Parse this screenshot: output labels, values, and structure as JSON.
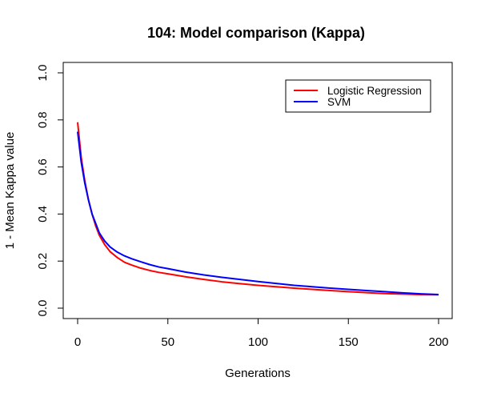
{
  "chart_data": {
    "type": "line",
    "title": "104: Model comparison (Kappa)",
    "xlabel": "Generations",
    "ylabel": "1 - Mean Kappa value",
    "xlim": [
      0,
      200
    ],
    "ylim": [
      0.0,
      1.0
    ],
    "xticks": [
      0,
      50,
      100,
      150,
      200
    ],
    "yticks": [
      0.0,
      0.2,
      0.4,
      0.6,
      0.8,
      1.0
    ],
    "xtick_labels": [
      "0",
      "50",
      "100",
      "150",
      "200"
    ],
    "ytick_labels": [
      "0.0",
      "0.2",
      "0.4",
      "0.6",
      "0.8",
      "1.0"
    ],
    "legend_position": "top-right",
    "grid": false,
    "series": [
      {
        "name": "Logistic Regression",
        "color": "#ff0000",
        "x": [
          0,
          2,
          4,
          6,
          8,
          10,
          12,
          15,
          18,
          22,
          26,
          30,
          35,
          40,
          45,
          50,
          60,
          70,
          80,
          90,
          100,
          110,
          120,
          130,
          140,
          150,
          160,
          170,
          180,
          190,
          200
        ],
        "y": [
          0.79,
          0.64,
          0.54,
          0.46,
          0.4,
          0.35,
          0.31,
          0.27,
          0.24,
          0.215,
          0.195,
          0.183,
          0.17,
          0.16,
          0.152,
          0.146,
          0.133,
          0.122,
          0.112,
          0.104,
          0.097,
          0.091,
          0.085,
          0.08,
          0.075,
          0.07,
          0.066,
          0.062,
          0.06,
          0.058,
          0.057
        ]
      },
      {
        "name": "SVM",
        "color": "#0000ff",
        "x": [
          0,
          2,
          4,
          6,
          8,
          10,
          12,
          15,
          18,
          22,
          26,
          30,
          35,
          40,
          45,
          50,
          60,
          70,
          80,
          90,
          100,
          110,
          120,
          130,
          140,
          150,
          160,
          170,
          180,
          190,
          200
        ],
        "y": [
          0.75,
          0.62,
          0.53,
          0.46,
          0.4,
          0.36,
          0.32,
          0.285,
          0.26,
          0.238,
          0.222,
          0.21,
          0.197,
          0.185,
          0.175,
          0.168,
          0.153,
          0.141,
          0.131,
          0.122,
          0.113,
          0.105,
          0.097,
          0.091,
          0.085,
          0.08,
          0.075,
          0.07,
          0.065,
          0.061,
          0.058
        ]
      }
    ]
  }
}
